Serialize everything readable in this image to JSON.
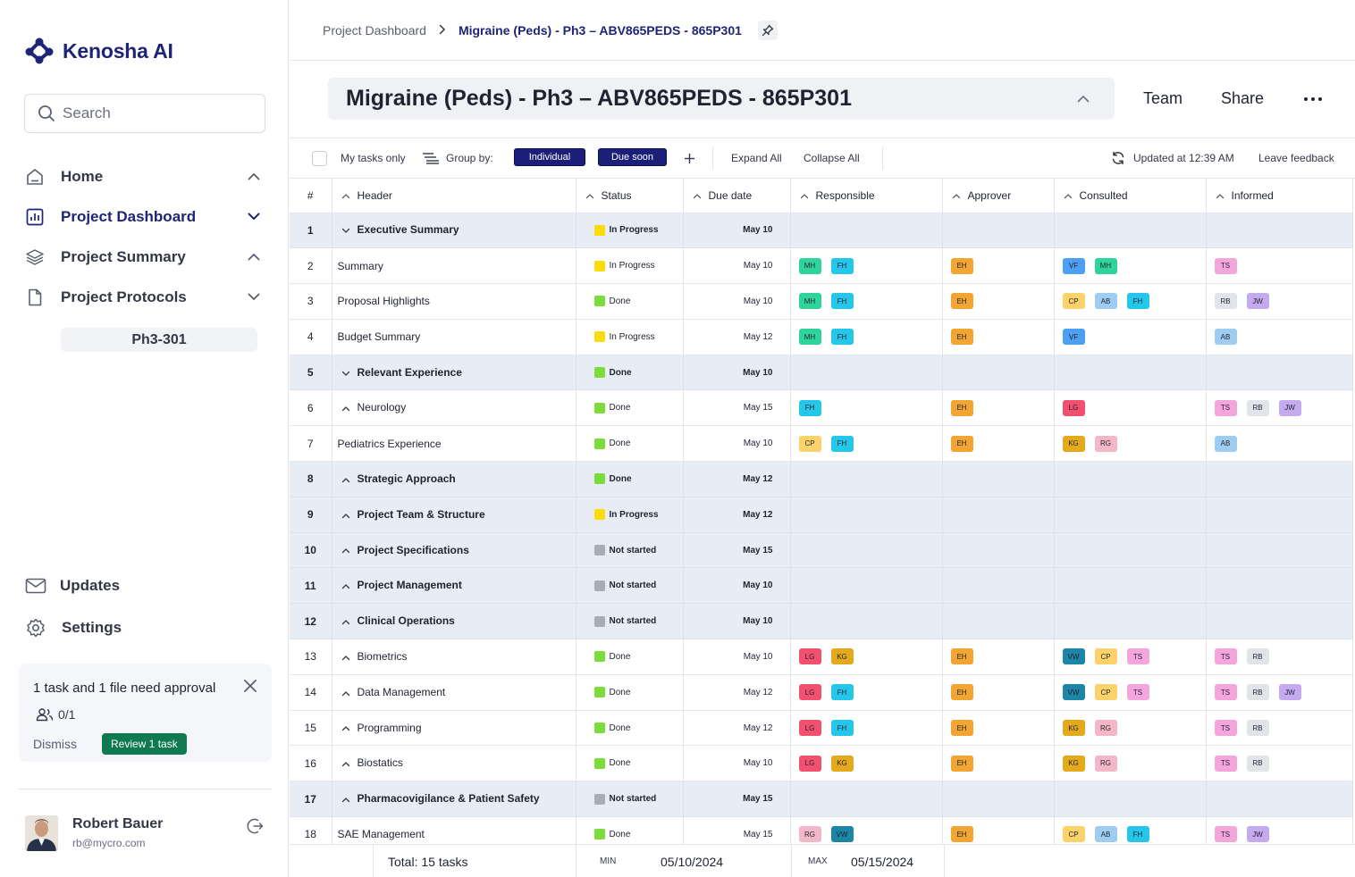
{
  "app": {
    "name": "Kenosha AI"
  },
  "search": {
    "placeholder": "Search"
  },
  "nav": {
    "items": [
      {
        "label": "Home",
        "icon": "home-icon",
        "chevron": "up"
      },
      {
        "label": "Project Dashboard",
        "icon": "dashboard-icon",
        "chevron": "down",
        "active": true
      },
      {
        "label": "Project Summary",
        "icon": "layers-icon",
        "chevron": "up"
      },
      {
        "label": "Project Protocols",
        "icon": "document-icon",
        "chevron": "down"
      }
    ],
    "protocol_sub": "Ph3-301",
    "bottom": [
      {
        "label": "Updates",
        "icon": "mail-icon"
      },
      {
        "label": "Settings",
        "icon": "gear-icon"
      }
    ]
  },
  "approval": {
    "title": "1 task and 1 file need approval",
    "count": "0/1",
    "dismiss": "Dismiss",
    "review": "Review 1 task"
  },
  "user": {
    "name": "Robert Bauer",
    "email": "rb@mycro.com"
  },
  "breadcrumb": {
    "parent": "Project Dashboard",
    "current": "Migraine (Peds) - Ph3 – ABV865PEDS - 865P301"
  },
  "page_title": "Migraine (Peds) - Ph3 – ABV865PEDS - 865P301",
  "header_actions": {
    "team": "Team",
    "share": "Share"
  },
  "toolbar": {
    "my_tasks": "My tasks only",
    "group_by": "Group by:",
    "tag1": "Individual",
    "tag2": "Due soon",
    "expand": "Expand All",
    "collapse": "Collapse All",
    "updated": "Updated at 12:39 AM",
    "feedback": "Leave feedback"
  },
  "columns": [
    "#",
    "Header",
    "Status",
    "Due date",
    "Responsible",
    "Approver",
    "Consulted",
    "Informed"
  ],
  "status_colors": {
    "In Progress": "#fadc0a",
    "Done": "#7bdc3a",
    "Not started": "#a9acb3"
  },
  "people": {
    "MH": "#2fd49a",
    "FH": "#24c6ea",
    "EH": "#f2a531",
    "VF": "#4d9ff2",
    "CP": "#fcd36b",
    "AB": "#9fcdf1",
    "TS": "#f4a6dc",
    "RB": "#e1e4e9",
    "JW": "#c5aaf0",
    "LG": "#f1506f",
    "KG": "#e5aa1b",
    "RG": "#f3b7c8",
    "VW": "#1d86a6"
  },
  "rows": [
    {
      "n": "1",
      "header": "Executive Summary",
      "group": true,
      "caret": "down",
      "status": "In Progress",
      "due": "May 10",
      "r": [],
      "a": [],
      "c": [],
      "i": []
    },
    {
      "n": "2",
      "header": "Summary",
      "status": "In Progress",
      "due": "May 10",
      "r": [
        "MH",
        "FH"
      ],
      "a": [
        "EH"
      ],
      "c": [
        "VF",
        "MH"
      ],
      "i": [
        "TS"
      ]
    },
    {
      "n": "3",
      "header": "Proposal Highlights",
      "status": "Done",
      "due": "May 10",
      "r": [
        "MH",
        "FH"
      ],
      "a": [
        "EH"
      ],
      "c": [
        "CP",
        "AB",
        "FH"
      ],
      "i": [
        "RB",
        "JW"
      ]
    },
    {
      "n": "4",
      "header": "Budget Summary",
      "status": "In Progress",
      "due": "May 12",
      "r": [
        "MH",
        "FH"
      ],
      "a": [
        "EH"
      ],
      "c": [
        "VF"
      ],
      "i": [
        "AB"
      ]
    },
    {
      "n": "5",
      "header": "Relevant Experience",
      "group": true,
      "caret": "down",
      "status": "Done",
      "due": "May 10",
      "r": [],
      "a": [],
      "c": [],
      "i": []
    },
    {
      "n": "6",
      "header": "Neurology",
      "sub": true,
      "caret": "up",
      "status": "Done",
      "due": "May 15",
      "r": [
        "FH"
      ],
      "a": [
        "EH"
      ],
      "c": [
        "LG"
      ],
      "i": [
        "TS",
        "RB",
        "JW"
      ]
    },
    {
      "n": "7",
      "header": "Pediatrics Experience",
      "status": "Done",
      "due": "May 10",
      "r": [
        "CP",
        "FH"
      ],
      "a": [
        "EH"
      ],
      "c": [
        "KG",
        "RG"
      ],
      "i": [
        "AB"
      ]
    },
    {
      "n": "8",
      "header": "Strategic Approach",
      "group": true,
      "caret": "up",
      "status": "Done",
      "due": "May 12",
      "r": [],
      "a": [],
      "c": [],
      "i": []
    },
    {
      "n": "9",
      "header": "Project Team & Structure",
      "group": true,
      "caret": "up",
      "status": "In Progress",
      "due": "May 12",
      "r": [],
      "a": [],
      "c": [],
      "i": []
    },
    {
      "n": "10",
      "header": "Project Specifications",
      "group": true,
      "caret": "up",
      "status": "Not started",
      "due": "May 15",
      "r": [],
      "a": [],
      "c": [],
      "i": []
    },
    {
      "n": "11",
      "header": "Project Management",
      "group": true,
      "caret": "up",
      "status": "Not started",
      "due": "May 10",
      "r": [],
      "a": [],
      "c": [],
      "i": []
    },
    {
      "n": "12",
      "header": "Clinical Operations",
      "group": true,
      "caret": "up",
      "status": "Not started",
      "due": "May 10",
      "r": [],
      "a": [],
      "c": [],
      "i": []
    },
    {
      "n": "13",
      "header": "Biometrics",
      "sub": true,
      "caret": "up",
      "status": "Done",
      "due": "May 10",
      "r": [
        "LG",
        "KG"
      ],
      "a": [
        "EH"
      ],
      "c": [
        "VW",
        "CP",
        "TS"
      ],
      "i": [
        "TS",
        "RB"
      ]
    },
    {
      "n": "14",
      "header": "Data Management",
      "sub": true,
      "caret": "up",
      "status": "Done",
      "due": "May 12",
      "r": [
        "LG",
        "FH"
      ],
      "a": [
        "EH"
      ],
      "c": [
        "VW",
        "CP",
        "TS"
      ],
      "i": [
        "TS",
        "RB",
        "JW"
      ]
    },
    {
      "n": "15",
      "header": "Programming",
      "sub": true,
      "caret": "up",
      "status": "Done",
      "due": "May 12",
      "r": [
        "LG",
        "FH"
      ],
      "a": [
        "EH"
      ],
      "c": [
        "KG",
        "RG"
      ],
      "i": [
        "TS",
        "RB"
      ]
    },
    {
      "n": "16",
      "header": "Biostatics",
      "sub": true,
      "caret": "up",
      "status": "Done",
      "due": "May 10",
      "r": [
        "LG",
        "KG"
      ],
      "a": [
        "EH"
      ],
      "c": [
        "KG",
        "RG"
      ],
      "i": [
        "TS",
        "RB"
      ]
    },
    {
      "n": "17",
      "header": "Pharmacovigilance & Patient Safety",
      "group": true,
      "caret": "up",
      "status": "Not started",
      "due": "May 15",
      "r": [],
      "a": [],
      "c": [],
      "i": []
    },
    {
      "n": "18",
      "header": "SAE Management",
      "status": "Done",
      "due": "May 15",
      "r": [
        "RG",
        "VW"
      ],
      "a": [
        "EH"
      ],
      "c": [
        "CP",
        "AB",
        "FH"
      ],
      "i": [
        "TS",
        "JW"
      ]
    }
  ],
  "footer": {
    "total": "Total: 15 tasks",
    "min_label": "MIN",
    "min": "05/10/2024",
    "max_label": "MAX",
    "max": "05/15/2024"
  }
}
